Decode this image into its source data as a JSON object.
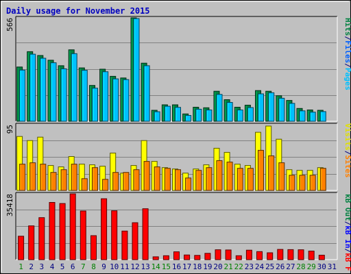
{
  "chart_data": [
    {
      "type": "bar",
      "title": "Daily usage for November 2015",
      "y_max_label": "566",
      "ylim": [
        0,
        566
      ],
      "categories": [
        "1",
        "2",
        "3",
        "4",
        "5",
        "6",
        "7",
        "8",
        "9",
        "10",
        "11",
        "12",
        "13",
        "14",
        "15",
        "16",
        "17",
        "18",
        "19",
        "20",
        "21",
        "22",
        "23",
        "24",
        "25",
        "26",
        "27",
        "28",
        "29",
        "30",
        "31"
      ],
      "weekend_days": [
        "1",
        "7",
        "8",
        "14",
        "15",
        "21",
        "22",
        "28",
        "29"
      ],
      "grid": true,
      "legend": "right-vertical",
      "series": [
        {
          "name": "Hits",
          "color": "#008040",
          "values": [
            297,
            381,
            360,
            334,
            304,
            391,
            292,
            196,
            285,
            246,
            237,
            566,
            318,
            60,
            90,
            90,
            40,
            77,
            74,
            164,
            118,
            77,
            88,
            168,
            164,
            140,
            114,
            70,
            62,
            60,
            null
          ]
        },
        {
          "name": "Files",
          "color": "#00c0ff",
          "values": [
            280,
            367,
            345,
            320,
            287,
            370,
            279,
            181,
            271,
            232,
            228,
            562,
            304,
            52,
            82,
            76,
            32,
            66,
            62,
            147,
            103,
            62,
            75,
            150,
            156,
            126,
            98,
            57,
            50,
            53,
            null
          ]
        },
        {
          "name": "Pages",
          "color": "#00c0ff",
          "values": [
            null,
            null,
            null,
            null,
            null,
            null,
            null,
            null,
            null,
            null,
            null,
            null,
            null,
            null,
            null,
            null,
            null,
            null,
            null,
            null,
            null,
            null,
            null,
            null,
            null,
            null,
            null,
            null,
            null,
            null,
            null
          ]
        }
      ]
    },
    {
      "type": "bar",
      "y_max_label": "95",
      "ylim": [
        0,
        95
      ],
      "categories": [
        "1",
        "2",
        "3",
        "4",
        "5",
        "6",
        "7",
        "8",
        "9",
        "10",
        "11",
        "12",
        "13",
        "14",
        "15",
        "16",
        "17",
        "18",
        "19",
        "20",
        "21",
        "22",
        "23",
        "24",
        "25",
        "26",
        "27",
        "28",
        "29",
        "30",
        "31"
      ],
      "grid": true,
      "legend": "right-vertical",
      "series": [
        {
          "name": "Visits",
          "color": "#ffff00",
          "values": [
            78,
            72,
            77,
            36,
            34,
            49,
            38,
            37,
            35,
            54,
            25,
            36,
            72,
            42,
            33,
            31,
            25,
            31,
            37,
            61,
            55,
            38,
            36,
            84,
            93,
            74,
            30,
            29,
            29,
            33,
            null
          ]
        },
        {
          "name": "Sites",
          "color": "#ff8000",
          "values": [
            38,
            40,
            38,
            26,
            30,
            38,
            17,
            33,
            16,
            26,
            26,
            30,
            42,
            34,
            32,
            30,
            18,
            29,
            33,
            43,
            41,
            32,
            32,
            58,
            50,
            40,
            22,
            22,
            22,
            32,
            null
          ]
        }
      ]
    },
    {
      "type": "bar",
      "y_max_label": "35418",
      "ylim": [
        0,
        35418
      ],
      "categories": [
        "1",
        "2",
        "3",
        "4",
        "5",
        "6",
        "7",
        "8",
        "9",
        "10",
        "11",
        "12",
        "13",
        "14",
        "15",
        "16",
        "17",
        "18",
        "19",
        "20",
        "21",
        "22",
        "23",
        "24",
        "25",
        "26",
        "27",
        "28",
        "29",
        "30",
        "31"
      ],
      "grid": true,
      "legend": "right-vertical",
      "series": [
        {
          "name": "KBytes F",
          "color": "#ff0000",
          "values": [
            12600,
            18200,
            22600,
            30800,
            30200,
            35418,
            26200,
            12900,
            32800,
            26300,
            15400,
            19900,
            27400,
            1500,
            2100,
            4200,
            2500,
            2300,
            3400,
            5300,
            5200,
            2100,
            5100,
            4300,
            3700,
            5500,
            5400,
            5300,
            4600,
            2400,
            null
          ]
        },
        {
          "name": "KBytes In",
          "color": "#0000ff",
          "values": [
            null,
            null,
            null,
            null,
            null,
            null,
            null,
            null,
            null,
            null,
            null,
            null,
            null,
            null,
            null,
            null,
            null,
            null,
            null,
            null,
            null,
            null,
            null,
            null,
            null,
            null,
            null,
            null,
            null,
            null,
            null
          ]
        },
        {
          "name": "KBytes Out",
          "color": "#00c000",
          "values": [
            null,
            null,
            null,
            null,
            null,
            null,
            null,
            null,
            null,
            null,
            null,
            null,
            null,
            null,
            null,
            null,
            null,
            null,
            null,
            null,
            null,
            null,
            null,
            null,
            null,
            null,
            null,
            null,
            null,
            null,
            null
          ]
        }
      ]
    }
  ],
  "legend_text": {
    "top": {
      "pages": "Pages",
      "sep1": "/",
      "files": "Files",
      "sep2": "/",
      "hits": "Hits",
      "pages_color": "#00c0ff",
      "sep_color": "#000080",
      "files_color": "#0060ff",
      "hits_color": "#008040"
    },
    "middle": {
      "sites": "Sites",
      "sep": "/",
      "visits": "Visits",
      "sites_color": "#ff8000",
      "sep_color": "#000080",
      "visits_color": "#e0e000"
    },
    "bottom": {
      "kbf": "kB F",
      "sep1": "/",
      "kbin": "kB In",
      "sep2": "/",
      "kbout": "kB Out",
      "kbf_color": "#ff0000",
      "sep_color": "#000080",
      "kbin_color": "#0000ff",
      "kbout_color": "#008040"
    }
  },
  "colors": {
    "frame_bg": "#c0c0c0",
    "plot_bg": "#c0c0c0",
    "title": "#0000c0",
    "axis_text": "#000000",
    "weekday_label": "#000080",
    "weekend_label": "#008000",
    "grid": "#808080"
  }
}
